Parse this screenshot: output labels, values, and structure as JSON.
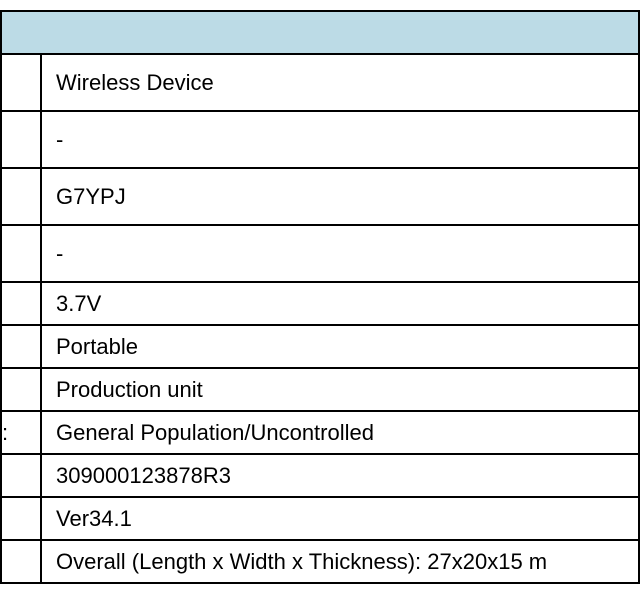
{
  "header_color": "#bcdbe6",
  "rows": [
    {
      "label": "",
      "value": "Wireless Device"
    },
    {
      "label": "",
      "value": "-"
    },
    {
      "label": "",
      "value": "G7YPJ"
    },
    {
      "label": "",
      "value": "-"
    },
    {
      "label": "",
      "value": "3.7V"
    },
    {
      "label": "",
      "value": "Portable"
    },
    {
      "label": "",
      "value": "Production unit"
    },
    {
      "label": ":",
      "value": "General Population/Uncontrolled"
    },
    {
      "label": "",
      "value": "309000123878R3"
    },
    {
      "label": "",
      "value": "Ver34.1"
    },
    {
      "label": "",
      "value": "Overall (Length x Width x Thickness): 27x20x15 m"
    }
  ]
}
